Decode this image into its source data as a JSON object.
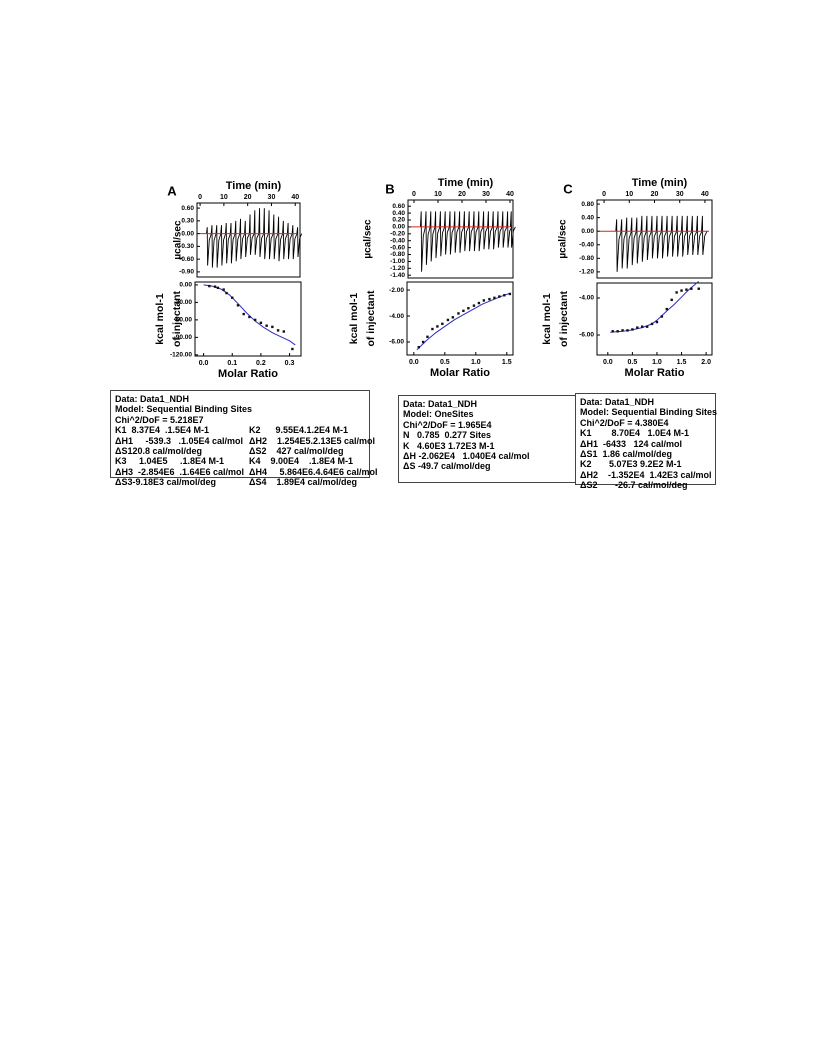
{
  "chart_data": [
    {
      "label": "A",
      "raw": {
        "type": "thermogram",
        "xlabel": "Time (min)",
        "ylabel": "µcal/sec",
        "xlim": [
          -1.3,
          42
        ],
        "xticks": [
          0,
          10,
          20,
          30,
          40
        ],
        "ylim": [
          -1.02,
          0.72
        ],
        "yticks": [
          {
            "value": 0.6,
            "label": "0.60"
          },
          {
            "value": 0.3,
            "label": "0.30"
          },
          {
            "value": 0,
            "label": "0.00"
          },
          {
            "value": -0.3,
            "label": "-0.30"
          },
          {
            "value": -0.6,
            "label": "-0.60"
          },
          {
            "value": -0.9,
            "label": "-0.90"
          }
        ],
        "time": [
          3,
          5,
          7,
          9,
          11,
          13,
          15,
          17,
          19,
          21,
          23,
          25,
          27,
          29,
          31,
          33,
          35,
          37,
          39,
          41
        ],
        "highs": [
          0.15,
          0.2,
          0.2,
          0.2,
          0.25,
          0.25,
          0.3,
          0.35,
          0.3,
          0.45,
          0.55,
          0.6,
          0.6,
          0.55,
          0.45,
          0.4,
          0.3,
          0.25,
          0.2,
          0.15
        ],
        "peaks": [
          -0.75,
          -0.8,
          -0.8,
          -0.75,
          -0.7,
          -0.7,
          -0.65,
          -0.6,
          -0.55,
          -0.5,
          -0.5,
          -0.55,
          -0.6,
          -0.6,
          -0.6,
          -0.65,
          -0.6,
          -0.6,
          -0.6,
          -0.55
        ]
      },
      "fit": {
        "type": "scatter",
        "xlabel": "Molar Ratio",
        "ylabel": [
          "kcal mol-1",
          "of injectant"
        ],
        "xlim": [
          -0.03,
          0.34
        ],
        "xticks": [
          {
            "value": 0,
            "label": "0.0"
          },
          {
            "value": 0.1,
            "label": "0.1"
          },
          {
            "value": 0.2,
            "label": "0.2"
          },
          {
            "value": 0.3,
            "label": "0.3"
          }
        ],
        "ylim": [
          -122,
          5
        ],
        "yticks": [
          {
            "value": 0,
            "label": "0.00"
          },
          {
            "value": -30,
            "label": "-30.00"
          },
          {
            "value": -60,
            "label": "-60.00"
          },
          {
            "value": -90,
            "label": "-90.00"
          },
          {
            "value": -120,
            "label": "-120.00"
          }
        ],
        "points": {
          "x": [
            0.02,
            0.04,
            0.05,
            0.07,
            0.08,
            0.1,
            0.12,
            0.14,
            0.16,
            0.18,
            0.2,
            0.22,
            0.24,
            0.26,
            0.28,
            0.31
          ],
          "y": [
            -2,
            -3,
            -5,
            -8,
            -14,
            -22,
            -35,
            -50,
            -55,
            -60,
            -65,
            -70,
            -72,
            -78,
            -80,
            -110
          ]
        },
        "curve": {
          "x": [
            0,
            0.03,
            0.06,
            0.09,
            0.12,
            0.15,
            0.18,
            0.21,
            0.24,
            0.27,
            0.3,
            0.32
          ],
          "y": [
            0,
            -2,
            -7,
            -17,
            -32,
            -48,
            -62,
            -73,
            -82,
            -89,
            -96,
            -103
          ]
        }
      },
      "box": [
        "Data: Data1_NDH",
        "Model: Sequential Binding Sites",
        "Chi^2/DoF = 5.218E7",
        [
          "K1  8.37E4  .1.5E4 M-1",
          "K2      9.55E4.1.2E4 M-1"
        ],
        [
          "ΔH1     -539.3   .1.05E4 cal/mol",
          "ΔH2    1.254E5.2.13E5 cal/mol"
        ],
        [
          "ΔS120.8 cal/mol/deg",
          "ΔS2    427 cal/mol/deg"
        ],
        [
          "K3     1.04E5     .1.8E4 M-1",
          "K4    9.00E4    .1.8E4 M-1"
        ],
        [
          "ΔH3  -2.854E6  .1.64E6 cal/mol",
          "ΔH4     5.864E6.4.64E6 cal/mol"
        ],
        [
          "ΔS3-9.18E3 cal/mol/deg",
          "ΔS4    1.89E4 cal/mol/deg"
        ]
      ]
    },
    {
      "label": "B",
      "raw": {
        "type": "thermogram",
        "xlabel": "Time (min)",
        "ylabel": "µcal/sec",
        "xlim": [
          -2.5,
          41.25
        ],
        "xticks": [
          0,
          10,
          20,
          30,
          40
        ],
        "ylim": [
          -1.48,
          0.78
        ],
        "yticks": [
          {
            "value": 0.6,
            "label": "0.60"
          },
          {
            "value": 0.4,
            "label": "0.40"
          },
          {
            "value": 0.2,
            "label": "0.20"
          },
          {
            "value": 0,
            "label": "0.00"
          },
          {
            "value": -0.2,
            "label": "-0.20"
          },
          {
            "value": -0.4,
            "label": "-0.40"
          },
          {
            "value": -0.6,
            "label": "-0.60"
          },
          {
            "value": -0.8,
            "label": "-0.80"
          },
          {
            "value": -1,
            "label": "-1.00"
          },
          {
            "value": -1.2,
            "label": "-1.20"
          },
          {
            "value": -1.4,
            "label": "-1.40"
          }
        ],
        "time": [
          3,
          5,
          7,
          9,
          11,
          13,
          15,
          17,
          19,
          21,
          23,
          25,
          27,
          29,
          31,
          33,
          35,
          37,
          39,
          40.5
        ],
        "highs": [
          0.45,
          0.45,
          0.45,
          0.45,
          0.45,
          0.45,
          0.45,
          0.45,
          0.45,
          0.45,
          0.45,
          0.45,
          0.45,
          0.45,
          0.45,
          0.45,
          0.45,
          0.45,
          0.45,
          0.45
        ],
        "peaks": [
          -1.3,
          -1.1,
          -1.0,
          -0.9,
          -0.85,
          -0.8,
          -0.8,
          -0.75,
          -0.75,
          -0.7,
          -0.7,
          -0.7,
          -0.7,
          -0.65,
          -0.65,
          -0.65,
          -0.6,
          -0.6,
          -0.6,
          -0.6
        ]
      },
      "fit": {
        "type": "scatter",
        "xlabel": "Molar Ratio",
        "ylabel": [
          "kcal mol-1",
          "of injectant"
        ],
        "xlim": [
          -0.11,
          1.6
        ],
        "xticks": [
          {
            "value": 0,
            "label": "0.0"
          },
          {
            "value": 0.5,
            "label": "0.5"
          },
          {
            "value": 1,
            "label": "1.0"
          },
          {
            "value": 1.5,
            "label": "1.5"
          }
        ],
        "ylim": [
          -7.0,
          -1.38
        ],
        "yticks": [
          {
            "value": -2,
            "label": "-2.00"
          },
          {
            "value": -4,
            "label": "-4.00"
          },
          {
            "value": -6,
            "label": "-6.00"
          }
        ],
        "points": {
          "x": [
            0.08,
            0.15,
            0.22,
            0.3,
            0.38,
            0.46,
            0.55,
            0.63,
            0.72,
            0.8,
            0.88,
            0.97,
            1.05,
            1.13,
            1.22,
            1.3,
            1.38,
            1.46,
            1.55
          ],
          "y": [
            -6.4,
            -6.0,
            -5.6,
            -5.0,
            -4.8,
            -4.6,
            -4.3,
            -4.1,
            -3.8,
            -3.6,
            -3.4,
            -3.2,
            -3.0,
            -2.8,
            -2.7,
            -2.6,
            -2.5,
            -2.4,
            -2.3
          ]
        },
        "curve": {
          "x": [
            0.05,
            0.2,
            0.35,
            0.5,
            0.65,
            0.8,
            0.95,
            1.1,
            1.25,
            1.4,
            1.55
          ],
          "y": [
            -6.6,
            -5.9,
            -5.3,
            -4.8,
            -4.3,
            -3.9,
            -3.5,
            -3.1,
            -2.8,
            -2.5,
            -2.25
          ]
        }
      },
      "box": [
        "Data: Data1_NDH",
        "Model: OneSites",
        "Chi^2/DoF = 1.965E4",
        "N   0.785  0.277 Sites",
        "K   4.60E3 1.72E3 M-1",
        "ΔH -2.062E4   1.040E4 cal/mol",
        "ΔS -49.7 cal/mol/deg"
      ]
    },
    {
      "label": "C",
      "raw": {
        "type": "thermogram",
        "xlabel": "Time (min)",
        "ylabel": "µcal/sec",
        "xlim": [
          -2.8,
          42.8
        ],
        "xticks": [
          0,
          10,
          20,
          30,
          40
        ],
        "ylim": [
          -1.38,
          0.92
        ],
        "yticks": [
          {
            "value": 0.8,
            "label": "0.80"
          },
          {
            "value": 0.4,
            "label": "0.40"
          },
          {
            "value": 0,
            "label": "0.00"
          },
          {
            "value": -0.4,
            "label": "-0.40"
          },
          {
            "value": -0.8,
            "label": "-0.80"
          },
          {
            "value": -1.2,
            "label": "-1.20"
          }
        ],
        "time": [
          5,
          7,
          9,
          11,
          13,
          15,
          17,
          19,
          21,
          23,
          25,
          27,
          29,
          31,
          33,
          35,
          37,
          39
        ],
        "highs": [
          0.35,
          0.35,
          0.4,
          0.4,
          0.4,
          0.45,
          0.45,
          0.45,
          0.45,
          0.45,
          0.45,
          0.45,
          0.45,
          0.45,
          0.45,
          0.45,
          0.45,
          0.45
        ],
        "peaks": [
          -1.2,
          -1.1,
          -1.1,
          -1.0,
          -0.95,
          -0.9,
          -0.85,
          -0.8,
          -0.8,
          -0.8,
          -0.75,
          -0.75,
          -0.75,
          -0.75,
          -0.7,
          -0.7,
          -0.7,
          -0.7
        ]
      },
      "fit": {
        "type": "scatter",
        "xlabel": "Molar Ratio",
        "ylabel": [
          "kcal mol-1",
          "of injectant"
        ],
        "xlim": [
          -0.22,
          2.12
        ],
        "xticks": [
          {
            "value": 0,
            "label": "0.0"
          },
          {
            "value": 0.5,
            "label": "0.5"
          },
          {
            "value": 1,
            "label": "1.0"
          },
          {
            "value": 1.5,
            "label": "1.5"
          },
          {
            "value": 2,
            "label": "2.0"
          }
        ],
        "ylim": [
          -7.08,
          -3.19
        ],
        "yticks": [
          {
            "value": -4,
            "label": "-4.00"
          },
          {
            "value": -6,
            "label": "-6.00"
          }
        ],
        "points": {
          "x": [
            0.1,
            0.2,
            0.3,
            0.4,
            0.5,
            0.6,
            0.7,
            0.8,
            0.9,
            1.0,
            1.1,
            1.2,
            1.3,
            1.4,
            1.5,
            1.6,
            1.7,
            1.85
          ],
          "y": [
            -5.8,
            -5.8,
            -5.75,
            -5.75,
            -5.7,
            -5.6,
            -5.55,
            -5.55,
            -5.4,
            -5.3,
            -5.0,
            -4.6,
            -4.1,
            -3.7,
            -3.6,
            -3.55,
            -3.5,
            -3.5
          ]
        },
        "curve": {
          "x": [
            0.05,
            0.3,
            0.5,
            0.7,
            0.9,
            1.0,
            1.1,
            1.2,
            1.35,
            1.5,
            1.65,
            1.85
          ],
          "y": [
            -5.85,
            -5.8,
            -5.72,
            -5.6,
            -5.4,
            -5.2,
            -4.95,
            -4.7,
            -4.35,
            -3.95,
            -3.55,
            -3.1
          ]
        }
      },
      "box": [
        "Data: Data1_NDH",
        "Model: Sequential Binding Sites",
        "Chi^2/DoF = 4.380E4",
        "K1        8.70E4   1.0E4 M-1",
        "ΔH1  -6433   124 cal/mol",
        "ΔS1  1.86 cal/mol/deg",
        "K2       5.07E3 9.2E2 M-1",
        "ΔH2    -1.352E4  1.42E3 cal/mol",
        "ΔS2       -26.7 cal/mol/deg"
      ]
    }
  ]
}
